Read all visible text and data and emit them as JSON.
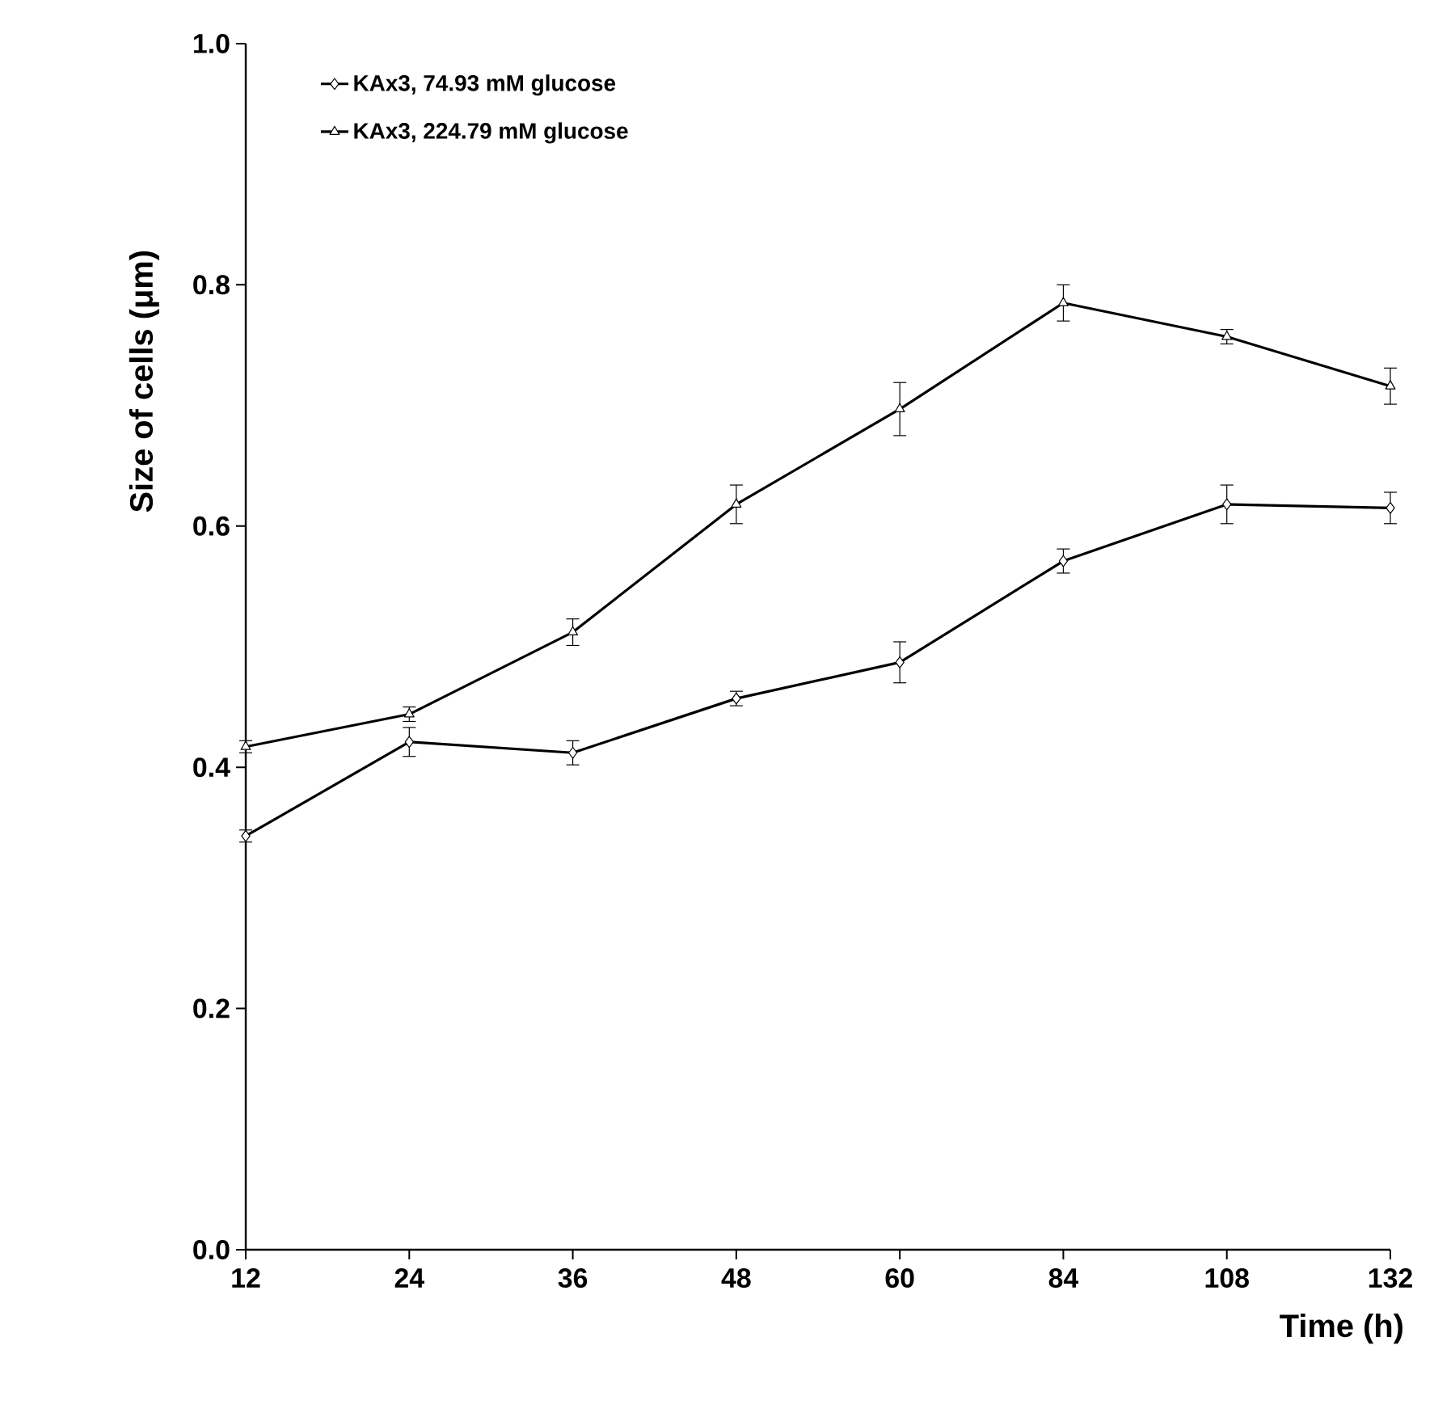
{
  "chart_data": {
    "type": "line",
    "xlabel": "Time (h)",
    "ylabel": "Size of cells (μm)",
    "categories": [
      "12",
      "24",
      "36",
      "48",
      "60",
      "84",
      "108",
      "132"
    ],
    "series": [
      {
        "name": "KAx3, 74.93 mM glucose",
        "color": "#000000",
        "marker": "diamond",
        "values": [
          0.343,
          0.421,
          0.412,
          0.457,
          0.487,
          0.571,
          0.618,
          0.615
        ],
        "errors": [
          0.005,
          0.012,
          0.01,
          0.006,
          0.017,
          0.01,
          0.016,
          0.013
        ]
      },
      {
        "name": "KAx3,  224.79 mM glucose",
        "color": "#000000",
        "marker": "triangle",
        "values": [
          0.417,
          0.444,
          0.512,
          0.618,
          0.697,
          0.785,
          0.757,
          0.716
        ],
        "errors": [
          0.005,
          0.006,
          0.011,
          0.016,
          0.022,
          0.015,
          0.006,
          0.015
        ]
      }
    ],
    "ylim": [
      0,
      1
    ],
    "yticks": [
      {
        "value": 0,
        "label": "0.0"
      },
      {
        "value": 0.2,
        "label": "0.2"
      },
      {
        "value": 0.4,
        "label": "0.4"
      },
      {
        "value": 0.6,
        "label": "0.6"
      },
      {
        "value": 0.8,
        "label": "0.8"
      },
      {
        "value": 1,
        "label": "1.0"
      }
    ],
    "legend": "top left",
    "line_style": "solid"
  }
}
